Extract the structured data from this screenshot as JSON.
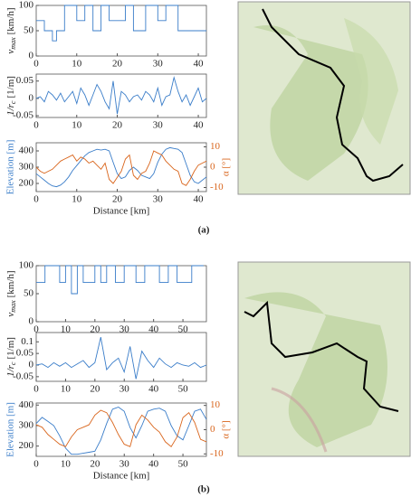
{
  "chart_data": [
    {
      "type": "line",
      "x": [
        0,
        2,
        2,
        4,
        4,
        5,
        5,
        7,
        7,
        10,
        10,
        12,
        12,
        14,
        14,
        16,
        16,
        18,
        18,
        22,
        22,
        24,
        24,
        27,
        27,
        30,
        30,
        32,
        32,
        35,
        35,
        38,
        38,
        42
      ],
      "series": [
        {
          "color": "#3a7dc9",
          "values": [
            70,
            70,
            50,
            50,
            30,
            30,
            50,
            50,
            100,
            100,
            70,
            70,
            100,
            100,
            50,
            50,
            100,
            100,
            70,
            70,
            100,
            100,
            50,
            50,
            100,
            100,
            70,
            70,
            100,
            100,
            50,
            50,
            50,
            50
          ]
        }
      ],
      "xlim": [
        0,
        42
      ],
      "xticks": [
        0,
        10,
        20,
        30,
        40
      ],
      "ylim": [
        0,
        100
      ],
      "yticks": [
        0,
        50,
        100
      ],
      "ylabel": {
        "symbol": "v",
        "subscript": "max",
        "unit": "[km/h]"
      }
    },
    {
      "type": "line",
      "x": [
        0,
        1,
        2,
        3,
        4,
        5,
        6,
        7,
        8,
        9,
        10,
        11,
        12,
        13,
        14,
        15,
        16,
        17,
        18,
        19,
        20,
        21,
        22,
        23,
        24,
        25,
        26,
        27,
        28,
        29,
        30,
        31,
        32,
        33,
        34,
        35,
        36,
        37,
        38,
        39,
        40,
        41,
        42
      ],
      "series": [
        {
          "color": "#3a7dc9",
          "values": [
            0,
            0.005,
            -0.01,
            0.02,
            0.01,
            -0.005,
            0.015,
            -0.01,
            0.005,
            0.02,
            -0.015,
            0.03,
            0.01,
            -0.02,
            0.01,
            0.04,
            0.02,
            -0.01,
            -0.03,
            0.05,
            -0.045,
            0.02,
            0.01,
            -0.01,
            0.005,
            0.01,
            -0.005,
            0.02,
            0.01,
            -0.01,
            0.03,
            -0.02,
            0.005,
            0.01,
            0.06,
            0.02,
            -0.01,
            0.01,
            -0.02,
            0.005,
            0.03,
            -0.01,
            0
          ]
        }
      ],
      "xlim": [
        0,
        42
      ],
      "xticks": [
        0,
        10,
        20,
        30,
        40
      ],
      "ylim": [
        -0.055,
        0.07
      ],
      "yticks": [
        -0.05,
        0,
        0.05
      ],
      "ylabel": {
        "symbol": "1/r",
        "subscript": "c",
        "unit": "[1/m]"
      }
    },
    {
      "type": "line",
      "x": [
        0,
        1,
        2,
        3,
        4,
        5,
        6,
        7,
        8,
        9,
        10,
        11,
        12,
        13,
        14,
        15,
        16,
        17,
        18,
        19,
        20,
        21,
        22,
        23,
        24,
        25,
        26,
        27,
        28,
        29,
        30,
        31,
        32,
        33,
        34,
        35,
        36,
        37,
        38,
        39,
        40,
        41,
        42
      ],
      "series": [
        {
          "color": "#3a7dc9",
          "values": [
            260,
            240,
            220,
            200,
            185,
            180,
            190,
            210,
            240,
            280,
            310,
            340,
            370,
            390,
            400,
            410,
            405,
            410,
            400,
            330,
            260,
            230,
            240,
            280,
            300,
            280,
            250,
            240,
            230,
            260,
            330,
            380,
            410,
            420,
            415,
            410,
            390,
            320,
            250,
            210,
            200,
            220,
            240
          ]
        },
        {
          "color": "#d9651c",
          "axis": "y2",
          "values": [
            0,
            -2,
            -3,
            -2,
            -1,
            1,
            3,
            4,
            5,
            6,
            3,
            5,
            4,
            2,
            3,
            1,
            -1,
            2,
            -6,
            -8,
            -5,
            -2,
            4,
            6,
            -4,
            -6,
            -3,
            -2,
            2,
            8,
            7,
            6,
            3,
            1,
            -1,
            -2,
            -8,
            -9,
            -6,
            -2,
            1,
            2,
            3
          ]
        }
      ],
      "xlim": [
        0,
        42
      ],
      "xticks": [
        0,
        10,
        20,
        30,
        40
      ],
      "ylim": [
        150,
        450
      ],
      "yticks": [
        200,
        300,
        400
      ],
      "y2lim": [
        -12,
        12
      ],
      "y2ticks": [
        -10,
        0,
        10
      ],
      "ylabel": "Elevation [m]",
      "y2label": "α [°]",
      "xlabel": "Distance [km]"
    },
    {
      "type": "line",
      "x": [
        0,
        3,
        3,
        8,
        8,
        10,
        10,
        12,
        12,
        14,
        14,
        16,
        16,
        20,
        20,
        22,
        22,
        24,
        24,
        27,
        27,
        30,
        30,
        34,
        34,
        37,
        37,
        42,
        42,
        45,
        45,
        48,
        48,
        53,
        53,
        57
      ],
      "series": [
        {
          "color": "#3a7dc9",
          "values": [
            70,
            70,
            100,
            100,
            70,
            70,
            100,
            100,
            50,
            50,
            100,
            100,
            70,
            70,
            100,
            100,
            70,
            70,
            100,
            100,
            70,
            70,
            100,
            100,
            70,
            70,
            100,
            100,
            70,
            70,
            100,
            100,
            70,
            70,
            100,
            100
          ]
        }
      ],
      "xlim": [
        0,
        58
      ],
      "xticks": [
        0,
        10,
        20,
        30,
        40,
        50
      ],
      "ylim": [
        0,
        100
      ],
      "yticks": [
        0,
        50,
        100
      ],
      "ylabel": {
        "symbol": "v",
        "subscript": "max",
        "unit": "[km/h]"
      }
    },
    {
      "type": "line",
      "x": [
        0,
        2,
        4,
        6,
        8,
        10,
        12,
        14,
        16,
        18,
        20,
        22,
        24,
        26,
        28,
        30,
        32,
        34,
        36,
        38,
        40,
        42,
        44,
        46,
        48,
        50,
        52,
        54,
        56,
        58
      ],
      "series": [
        {
          "color": "#3a7dc9",
          "values": [
            0,
            0.005,
            -0.01,
            0.01,
            -0.005,
            0.01,
            -0.01,
            0.005,
            0.02,
            -0.01,
            0.01,
            0.12,
            -0.02,
            0.01,
            0.03,
            -0.03,
            0.08,
            -0.06,
            0.06,
            0.02,
            -0.01,
            0.03,
            0.005,
            -0.01,
            0.01,
            0,
            -0.005,
            0.01,
            -0.01,
            0
          ]
        }
      ],
      "xlim": [
        0,
        58
      ],
      "xticks": [
        0,
        10,
        20,
        30,
        40,
        50
      ],
      "ylim": [
        -0.07,
        0.14
      ],
      "yticks": [
        -0.05,
        0,
        0.05,
        0.1
      ],
      "ylabel": {
        "symbol": "1/r",
        "subscript": "c",
        "unit": "[1/m]"
      }
    },
    {
      "type": "line",
      "x": [
        0,
        2,
        4,
        6,
        8,
        10,
        12,
        14,
        16,
        18,
        20,
        22,
        24,
        26,
        28,
        30,
        32,
        34,
        36,
        38,
        40,
        42,
        44,
        46,
        48,
        50,
        52,
        54,
        56,
        58
      ],
      "series": [
        {
          "color": "#3a7dc9",
          "values": [
            310,
            340,
            320,
            300,
            250,
            190,
            160,
            160,
            165,
            170,
            175,
            230,
            310,
            380,
            390,
            370,
            290,
            240,
            300,
            370,
            380,
            385,
            370,
            300,
            250,
            230,
            300,
            370,
            380,
            330
          ]
        },
        {
          "color": "#d9651c",
          "axis": "y2",
          "values": [
            2,
            1,
            -2,
            -4,
            -6,
            -7,
            -3,
            0,
            1,
            2,
            6,
            8,
            7,
            3,
            -2,
            -6,
            -7,
            2,
            6,
            4,
            1,
            -1,
            -5,
            -7,
            -3,
            5,
            7,
            3,
            -4,
            -5
          ]
        }
      ],
      "xlim": [
        0,
        58
      ],
      "xticks": [
        0,
        10,
        20,
        30,
        40,
        50
      ],
      "ylim": [
        150,
        410
      ],
      "yticks": [
        200,
        300,
        400
      ],
      "y2lim": [
        -11,
        11
      ],
      "y2ticks": [
        -10,
        0,
        10
      ],
      "ylabel": "Elevation [m]",
      "y2label": "α [°]",
      "xlabel": "Distance [km]"
    }
  ],
  "captions": [
    "(a)",
    "(b)"
  ]
}
